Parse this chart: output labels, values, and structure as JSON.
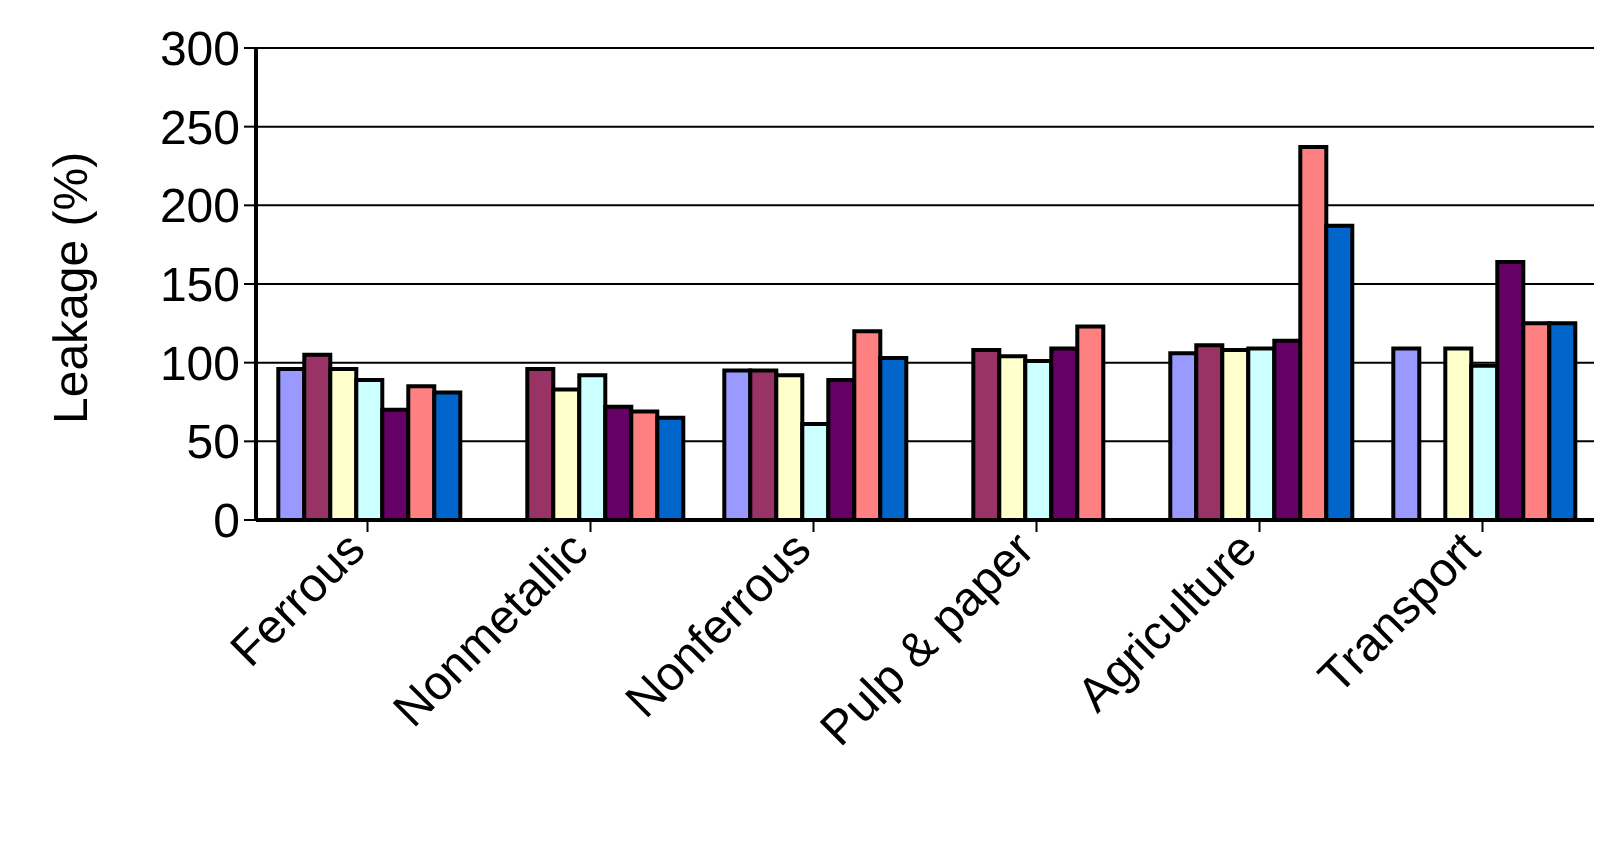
{
  "chart_data": {
    "type": "bar",
    "ylabel": "Leakage (%)",
    "categories": [
      "Ferrous",
      "Nonmetallic",
      "Nonferrous",
      "Pulp & paper",
      "Agriculture",
      "Transport"
    ],
    "series": [
      {
        "color": "#9999ff",
        "values": [
          96,
          null,
          95,
          null,
          106,
          109
        ]
      },
      {
        "color": "#993366",
        "values": [
          105,
          96,
          95,
          108,
          111,
          null
        ]
      },
      {
        "color": "#ffffcc",
        "values": [
          96,
          83,
          92,
          104,
          108,
          109
        ]
      },
      {
        "color": "#ccffff",
        "values": [
          89,
          92,
          61,
          101,
          109,
          98
        ]
      },
      {
        "color": "#660066",
        "values": [
          70,
          72,
          89,
          109,
          114,
          164
        ]
      },
      {
        "color": "#ff8080",
        "values": [
          85,
          69,
          120,
          123,
          237,
          125
        ]
      },
      {
        "color": "#0066cc",
        "values": [
          81,
          65,
          103,
          null,
          187,
          125
        ]
      }
    ],
    "ylim": [
      0,
      300
    ],
    "yticks": [
      0,
      50,
      100,
      150,
      200,
      250,
      300
    ],
    "grid": "y",
    "legend": false
  }
}
